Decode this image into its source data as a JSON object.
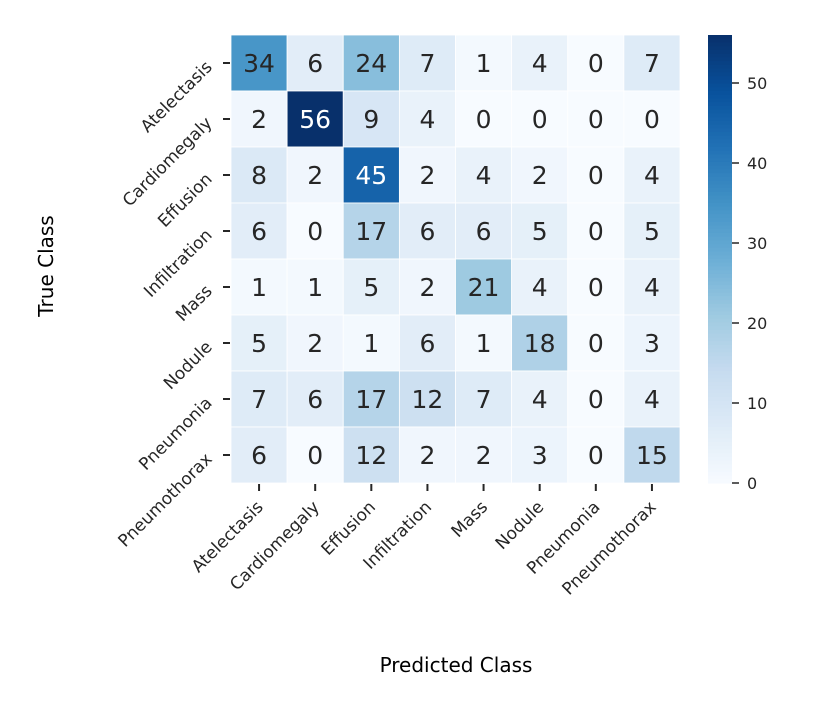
{
  "chart_data": {
    "type": "heatmap",
    "title": "",
    "xlabel": "Predicted Class",
    "ylabel": "True Class",
    "x_categories": [
      "Atelectasis",
      "Cardiomegaly",
      "Effusion",
      "Infiltration",
      "Mass",
      "Nodule",
      "Pneumonia",
      "Pneumothorax"
    ],
    "y_categories": [
      "Atelectasis",
      "Cardiomegaly",
      "Effusion",
      "Infiltration",
      "Mass",
      "Nodule",
      "Pneumonia",
      "Pneumothorax"
    ],
    "values": [
      [
        34,
        6,
        24,
        7,
        1,
        4,
        0,
        7
      ],
      [
        2,
        56,
        9,
        4,
        0,
        0,
        0,
        0
      ],
      [
        8,
        2,
        45,
        2,
        4,
        2,
        0,
        4
      ],
      [
        6,
        0,
        17,
        6,
        6,
        5,
        0,
        5
      ],
      [
        1,
        1,
        5,
        2,
        21,
        4,
        0,
        4
      ],
      [
        5,
        2,
        1,
        6,
        1,
        18,
        0,
        3
      ],
      [
        7,
        6,
        17,
        12,
        7,
        4,
        0,
        4
      ],
      [
        6,
        0,
        12,
        2,
        2,
        3,
        0,
        15
      ]
    ],
    "colormap": "Blues",
    "colorbar": {
      "range": [
        0,
        56
      ],
      "ticks": [
        0,
        10,
        20,
        30,
        40,
        50
      ],
      "tick_labels": [
        "0",
        "10",
        "20",
        "30",
        "40",
        "50"
      ]
    },
    "annotations": true,
    "grid": false
  }
}
